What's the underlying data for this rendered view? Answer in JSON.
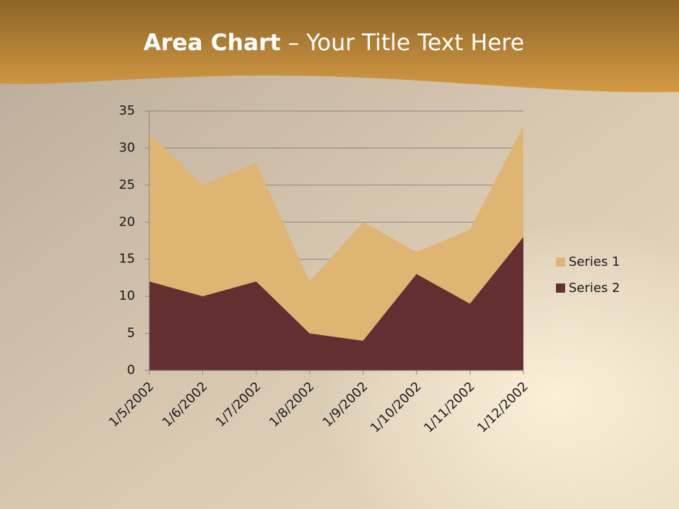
{
  "chart_data": {
    "type": "area",
    "title": [
      "Area Chart",
      " – Your Title Text Here"
    ],
    "categories": [
      "1/5/2002",
      "1/6/2002",
      "1/7/2002",
      "1/8/2002",
      "1/9/2002",
      "1/10/2002",
      "1/11/2002",
      "1/12/2002"
    ],
    "series": [
      {
        "name": "Series 1",
        "color": "#dfb574",
        "values": [
          32,
          25,
          28,
          12,
          20,
          16,
          19,
          33
        ]
      },
      {
        "name": "Series 2",
        "color": "#642f30",
        "values": [
          12,
          10,
          12,
          5,
          4,
          13,
          9,
          18
        ]
      }
    ],
    "ylim": [
      0,
      35
    ],
    "yticks": [
      0,
      5,
      10,
      15,
      20,
      25,
      30,
      35
    ],
    "grid": true,
    "legend": "right"
  }
}
